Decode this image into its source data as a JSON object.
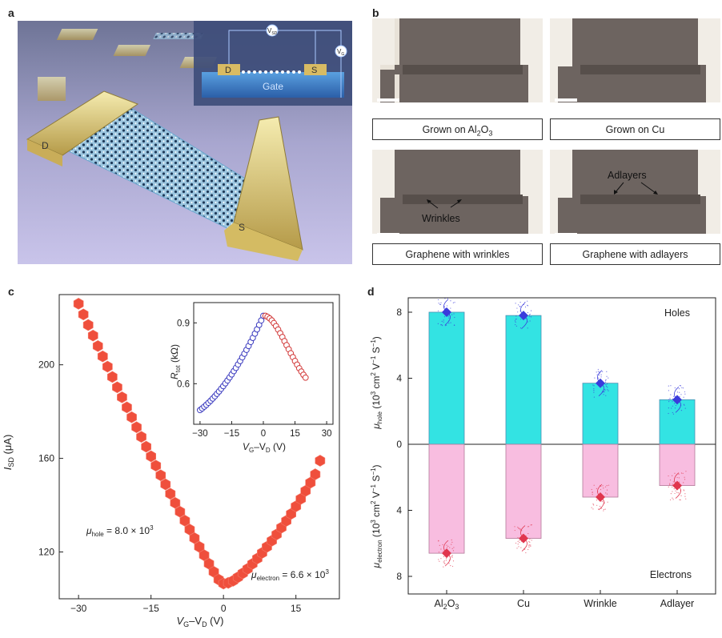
{
  "panels": {
    "a": "a",
    "b": "b",
    "c": "c",
    "d": "d"
  },
  "panel_a": {
    "labels": {
      "drain": "D",
      "source": "S",
      "gate": "Gate",
      "vsd": "V",
      "vsd_sub": "SD",
      "vg": "V",
      "vg_sub": "G"
    }
  },
  "panel_b": {
    "captions": [
      {
        "text": "Grown on Al",
        "sub": "2",
        "tail": "O",
        "sub2": "3"
      },
      {
        "text": "Grown on Cu"
      },
      {
        "text": "Graphene with wrinkles"
      },
      {
        "text": "Graphene with adlayers"
      }
    ],
    "annotations": {
      "wrinkles": "Wrinkles",
      "adlayers": "Adlayers"
    }
  },
  "chart_data": [
    {
      "panel": "c",
      "type": "scatter",
      "xlabel_main": "V",
      "xlabel_sub1": "G",
      "xlabel_mid": "–V",
      "xlabel_sub2": "D",
      "xlabel_unit": " (V)",
      "ylabel_main": "I",
      "ylabel_sub": "SD",
      "ylabel_unit": " (μA)",
      "xlim": [
        -34,
        24
      ],
      "ylim": [
        100,
        230
      ],
      "xticks": [
        "−30",
        "−15",
        "0",
        "15"
      ],
      "xtick_values": [
        -30,
        -15,
        0,
        15
      ],
      "yticks": [
        "120",
        "160",
        "200"
      ],
      "ytick_values": [
        120,
        160,
        200
      ],
      "annotations": {
        "hole": {
          "mu": "μ",
          "sub": "hole",
          "text": " = 8.0 × 10",
          "sup": "3"
        },
        "electron": {
          "mu": "μ",
          "sub": "electron",
          "text": " = 6.6 × 10",
          "sup": "3"
        }
      },
      "series": [
        {
          "name": "I_SD",
          "color": "#ef4f3c",
          "x": [
            -30,
            -29,
            -28,
            -27,
            -26,
            -25,
            -24,
            -23,
            -22,
            -21,
            -20,
            -19,
            -18,
            -17,
            -16,
            -15,
            -14,
            -13,
            -12,
            -11,
            -10,
            -9,
            -8,
            -7,
            -6,
            -5,
            -4,
            -3,
            -2,
            -1,
            0,
            1,
            2,
            3,
            4,
            5,
            6,
            7,
            8,
            9,
            10,
            11,
            12,
            13,
            14,
            15,
            16,
            17,
            18,
            19,
            20
          ],
          "y": [
            226.1,
            221.5,
            217.0,
            212.5,
            208.0,
            203.6,
            199.2,
            194.8,
            190.4,
            186.1,
            181.8,
            177.6,
            173.3,
            169.2,
            165.0,
            160.9,
            156.9,
            152.8,
            148.9,
            144.9,
            141.0,
            137.2,
            133.4,
            129.6,
            125.9,
            122.2,
            118.6,
            115.0,
            111.5,
            108.2,
            106.5,
            106.8,
            107.7,
            109.2,
            110.9,
            112.8,
            114.9,
            117.2,
            119.6,
            122.2,
            124.8,
            127.5,
            130.4,
            133.3,
            136.3,
            139.5,
            142.7,
            146.1,
            149.6,
            153.2,
            159.0
          ]
        }
      ]
    },
    {
      "panel": "c-inset",
      "type": "scatter",
      "ylabel_main": "R",
      "ylabel_sub": "tot",
      "ylabel_unit": " (kΩ)",
      "xlabel_main": "V",
      "xlabel_sub1": "G",
      "xlabel_mid": "–V",
      "xlabel_sub2": "D",
      "xlabel_unit": " (V)",
      "xlim": [
        -33,
        33
      ],
      "ylim": [
        0.4,
        1.0
      ],
      "xticks": [
        "−30",
        "−15",
        "0",
        "15",
        "30"
      ],
      "xtick_values": [
        -30,
        -15,
        0,
        15,
        30
      ],
      "yticks": [
        "0.6",
        "0.9"
      ],
      "ytick_values": [
        0.6,
        0.9
      ],
      "series": [
        {
          "name": "holes",
          "color": "#3b3bbf",
          "x": [
            -30,
            -29,
            -28,
            -27,
            -26,
            -25,
            -24,
            -23,
            -22,
            -21,
            -20,
            -19,
            -18,
            -17,
            -16,
            -15,
            -14,
            -13,
            -12,
            -11,
            -10,
            -9,
            -8,
            -7,
            -6,
            -5,
            -4,
            -3,
            -2,
            -1,
            0
          ],
          "y": [
            0.47,
            0.478,
            0.487,
            0.496,
            0.506,
            0.516,
            0.527,
            0.538,
            0.55,
            0.562,
            0.575,
            0.588,
            0.602,
            0.616,
            0.631,
            0.646,
            0.662,
            0.678,
            0.695,
            0.712,
            0.73,
            0.748,
            0.767,
            0.786,
            0.806,
            0.826,
            0.847,
            0.868,
            0.89,
            0.912,
            0.935
          ]
        },
        {
          "name": "electrons",
          "color": "#d23a3a",
          "x": [
            1,
            2,
            3,
            4,
            5,
            6,
            7,
            8,
            9,
            10,
            11,
            12,
            13,
            14,
            15,
            16,
            17,
            18,
            19,
            20
          ],
          "y": [
            0.935,
            0.93,
            0.922,
            0.912,
            0.899,
            0.884,
            0.867,
            0.849,
            0.83,
            0.81,
            0.79,
            0.77,
            0.75,
            0.731,
            0.712,
            0.694,
            0.676,
            0.66,
            0.644,
            0.63
          ]
        }
      ]
    },
    {
      "panel": "d",
      "type": "bar",
      "categories": [
        "Al2O3",
        "Cu",
        "Wrinkle",
        "Adlayer"
      ],
      "category_labels": [
        {
          "text": "Al",
          "sub": "2",
          "tail": "O",
          "sub2": "3"
        },
        {
          "text": "Cu"
        },
        {
          "text": "Wrinkle"
        },
        {
          "text": "Adlayer"
        }
      ],
      "series": [
        {
          "name": "Holes",
          "color": "#33e3e3",
          "marker_color": "#3a3bdc",
          "values": [
            8.0,
            7.8,
            3.7,
            2.7
          ]
        },
        {
          "name": "Electrons",
          "color": "#f8bde0",
          "marker_color": "#e0364e",
          "values": [
            6.6,
            5.7,
            3.2,
            2.5
          ]
        }
      ],
      "yticks_top": [
        "0",
        "4",
        "8"
      ],
      "ytick_values_top": [
        0,
        4,
        8
      ],
      "yticks_bottom": [
        "4",
        "8"
      ],
      "ytick_values_bottom": [
        4,
        8
      ],
      "ylim_top": [
        0,
        8.8
      ],
      "ylim_bottom": [
        0,
        8.8
      ],
      "ylabel_top": {
        "mu": "μ",
        "sub": "hole",
        "text": " (10",
        "sup": "3",
        "tail": " cm",
        "sup2": "2",
        "tail2": " V",
        "sup3": "−1",
        "tail3": " S",
        "sup4": "−1",
        "tail4": ")"
      },
      "ylabel_bottom": {
        "mu": "μ",
        "sub": "electron",
        "text": " (10",
        "sup": "3",
        "tail": " cm",
        "sup2": "2",
        "tail2": " V",
        "sup3": "−1",
        "tail3": " S",
        "sup4": "−1",
        "tail4": ")"
      },
      "legend": {
        "top": "Holes",
        "bottom": "Electrons"
      }
    }
  ]
}
